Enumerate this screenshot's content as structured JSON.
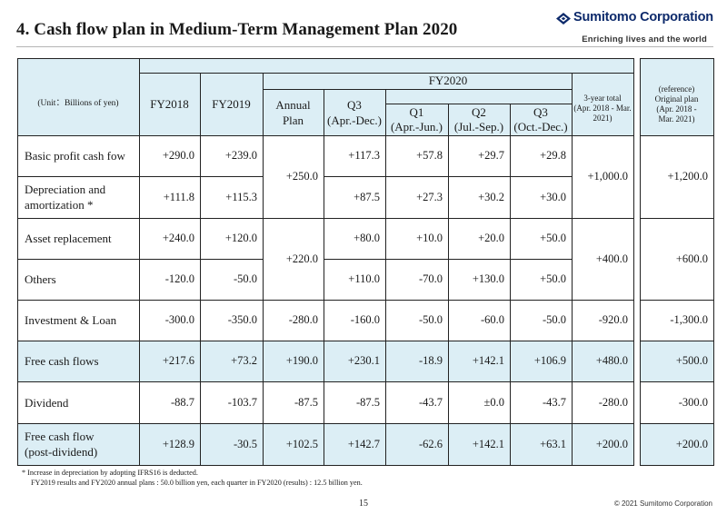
{
  "title": "4. Cash flow plan in Medium-Term Management Plan 2020",
  "brand": {
    "name": "Sumitomo Corporation",
    "tagline": "Enriching lives and the world",
    "primary_color": "#0d2a6b",
    "header_fill": "#dceef5"
  },
  "table": {
    "unit_label": "(Unit：Billions of yen)",
    "fy2018": "FY2018",
    "fy2019": "FY2019",
    "annual_plan": "Annual\nPlan",
    "fy2020": "FY2020",
    "q3_cum": "Q3\n(Apr.-Dec.)",
    "q1": "Q1\n(Apr.-Jun.)",
    "q2": "Q2\n(Jul.-Sep.)",
    "q3": "Q3\n(Oct.-Dec.)",
    "three_year_total": "3-year total\n(Apr. 2018 - Mar.\n2021)",
    "original_plan": "(reference)\nOriginal plan\n(Apr. 2018 -\nMar. 2021)",
    "rows": [
      {
        "label": "Basic profit cash fow",
        "fy2018": "+290.0",
        "fy2019": "+239.0",
        "q3cum": "+117.3",
        "q1": "+57.8",
        "q2": "+29.7",
        "q3": "+29.8"
      },
      {
        "label": "Depreciation and\namortization *",
        "fy2018": "+111.8",
        "fy2019": "+115.3",
        "q3cum": "+87.5",
        "q1": "+27.3",
        "q2": "+30.2",
        "q3": "+30.0"
      },
      {
        "label": "Asset replacement",
        "fy2018": "+240.0",
        "fy2019": "+120.0",
        "q3cum": "+80.0",
        "q1": "+10.0",
        "q2": "+20.0",
        "q3": "+50.0"
      },
      {
        "label": "Others",
        "fy2018": "-120.0",
        "fy2019": "-50.0",
        "q3cum": "+110.0",
        "q1": "-70.0",
        "q2": "+130.0",
        "q3": "+50.0"
      },
      {
        "label": "Investment & Loan",
        "fy2018": "-300.0",
        "fy2019": "-350.0",
        "plan": "-280.0",
        "q3cum": "-160.0",
        "q1": "-50.0",
        "q2": "-60.0",
        "q3": "-50.0",
        "total": "-920.0",
        "orig": "-1,300.0"
      },
      {
        "label": "Free cash flows",
        "fy2018": "+217.6",
        "fy2019": "+73.2",
        "plan": "+190.0",
        "q3cum": "+230.1",
        "q1": "-18.9",
        "q2": "+142.1",
        "q3": "+106.9",
        "total": "+480.0",
        "orig": "+500.0"
      },
      {
        "label": "Dividend",
        "fy2018": "-88.7",
        "fy2019": "-103.7",
        "plan": "-87.5",
        "q3cum": "-87.5",
        "q1": "-43.7",
        "q2": "±0.0",
        "q3": "-43.7",
        "total": "-280.0",
        "orig": "-300.0"
      },
      {
        "label": "Free cash flow\n(post-dividend)",
        "fy2018": "+128.9",
        "fy2019": "-30.5",
        "plan": "+102.5",
        "q3cum": "+142.7",
        "q1": "-62.6",
        "q2": "+142.1",
        "q3": "+63.1",
        "total": "+200.0",
        "orig": "+200.0"
      }
    ],
    "merged": {
      "plan_basic_dep": "+250.0",
      "plan_asset_others": "+220.0",
      "total_basic_dep": "+1,000.0",
      "orig_basic_dep": "+1,200.0",
      "total_asset_others": "+400.0",
      "orig_asset_others": "+600.0"
    }
  },
  "footnote": {
    "line1": "*  Increase in depreciation by adopting IFRS16 is deducted.",
    "line2": "FY2019 results and FY2020 annual plans : 50.0 billion yen, each quarter in FY2020 (results) : 12.5 billion yen."
  },
  "page_number": "15",
  "copyright": "© 2021 Sumitomo Corporation"
}
